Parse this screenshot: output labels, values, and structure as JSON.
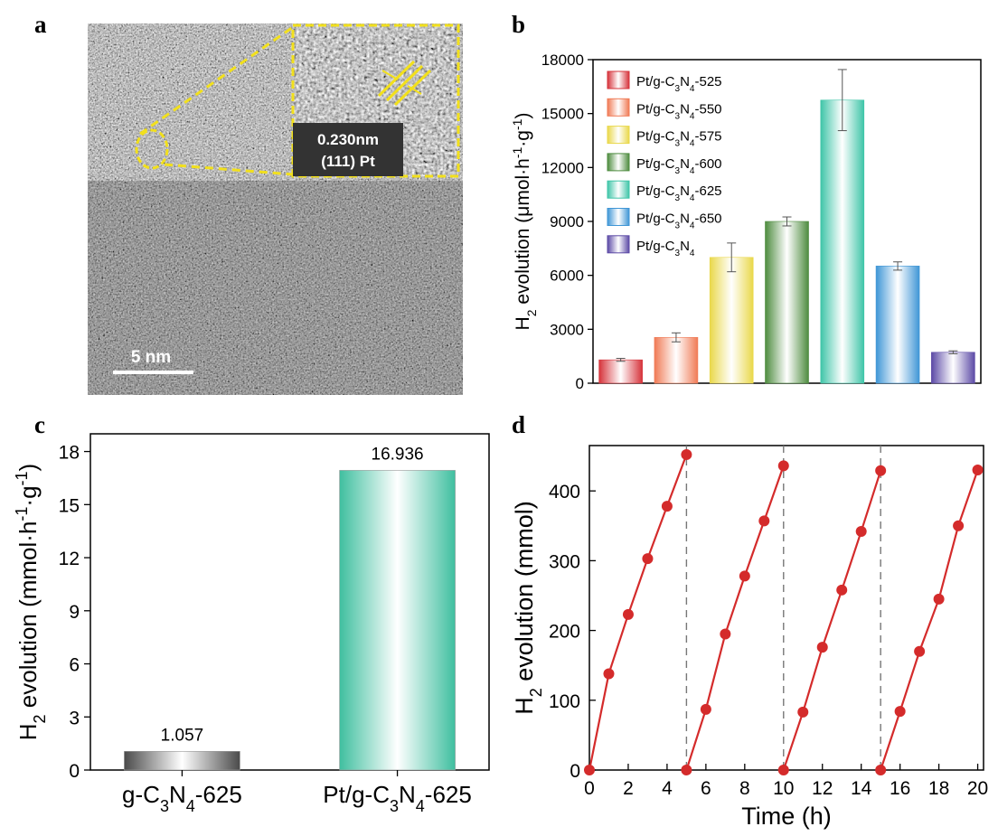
{
  "panels": {
    "a": "a",
    "b": "b",
    "c": "c",
    "d": "d"
  },
  "tem": {
    "scale_bar_label": "5 nm",
    "lattice_label_line1": "0.230nm",
    "lattice_label_line2": "(111) Pt"
  },
  "chart_data": [
    {
      "panel": "b",
      "type": "bar",
      "ylabel": "H2 evolution (μmol·h-1·g-1)",
      "ylim": [
        0,
        18000
      ],
      "yticks": [
        "0",
        "3000",
        "6000",
        "9000",
        "12000",
        "15000",
        "18000"
      ],
      "legend_position": "top-left",
      "categories": [
        "Pt/g-C3N4-525",
        "Pt/g-C3N4-550",
        "Pt/g-C3N4-575",
        "Pt/g-C3N4-600",
        "Pt/g-C3N4-625",
        "Pt/g-C3N4-650",
        "Pt/g-C3N4"
      ],
      "values": [
        1300,
        2550,
        7000,
        9000,
        15750,
        6520,
        1720
      ],
      "errors": [
        80,
        250,
        800,
        250,
        1700,
        230,
        80
      ],
      "colors": [
        "#d6333b",
        "#f07a55",
        "#e9d84a",
        "#4e8c3f",
        "#3fc5a8",
        "#3f96d6",
        "#5c4aa6"
      ]
    },
    {
      "panel": "c",
      "type": "bar",
      "ylabel": "H2 evolution (mmol·h-1·g-1)",
      "ylim": [
        0,
        19
      ],
      "yticks": [
        "0",
        "3",
        "6",
        "9",
        "12",
        "15",
        "18"
      ],
      "categories": [
        "g-C3N4-625",
        "Pt/g-C3N4-625"
      ],
      "values": [
        1.057,
        16.936
      ],
      "data_labels": [
        "1.057",
        "16.936"
      ],
      "colors": [
        "#4a4a4a",
        "#3fbf9f"
      ]
    },
    {
      "panel": "d",
      "type": "line",
      "xlabel": "Time (h)",
      "ylabel": "H2 evolution (mmol)",
      "xlim": [
        0,
        20.3
      ],
      "ylim": [
        0,
        465
      ],
      "xticks": [
        "0",
        "2",
        "4",
        "6",
        "8",
        "10",
        "12",
        "14",
        "16",
        "18",
        "20"
      ],
      "yticks": [
        "0",
        "100",
        "200",
        "300",
        "400"
      ],
      "cycle_boundaries": [
        5,
        10,
        15
      ],
      "color": "#d42b2b",
      "cycles": [
        {
          "x": [
            0,
            1,
            2,
            3,
            4,
            5
          ],
          "y": [
            0,
            138,
            223,
            303,
            378,
            452
          ]
        },
        {
          "x": [
            5,
            6,
            7,
            8,
            9,
            10
          ],
          "y": [
            0,
            87,
            195,
            278,
            357,
            436
          ]
        },
        {
          "x": [
            10,
            11,
            12,
            13,
            14,
            15
          ],
          "y": [
            0,
            83,
            176,
            258,
            342,
            429
          ]
        },
        {
          "x": [
            15,
            16,
            17,
            18,
            19,
            20
          ],
          "y": [
            0,
            84,
            170,
            245,
            350,
            430
          ]
        }
      ]
    }
  ]
}
